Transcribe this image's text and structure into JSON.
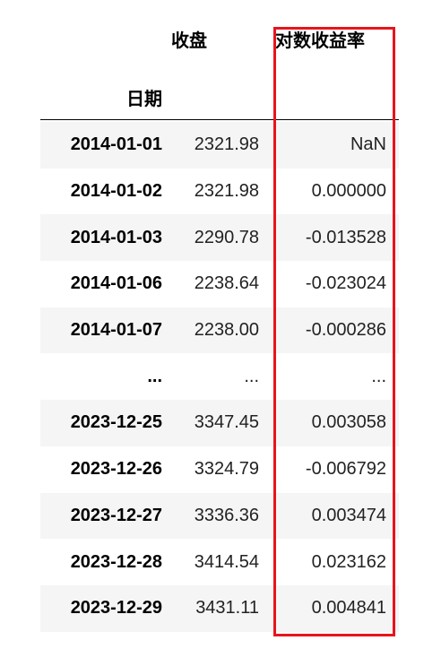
{
  "columns": {
    "close": "收盘",
    "log_return": "对数收益率",
    "index_name": "日期"
  },
  "rows": [
    {
      "date": "2014-01-01",
      "close": "2321.98",
      "log_return": "NaN"
    },
    {
      "date": "2014-01-02",
      "close": "2321.98",
      "log_return": "0.000000"
    },
    {
      "date": "2014-01-03",
      "close": "2290.78",
      "log_return": "-0.013528"
    },
    {
      "date": "2014-01-06",
      "close": "2238.64",
      "log_return": "-0.023024"
    },
    {
      "date": "2014-01-07",
      "close": "2238.00",
      "log_return": "-0.000286"
    },
    {
      "date": "...",
      "close": "...",
      "log_return": "..."
    },
    {
      "date": "2023-12-25",
      "close": "3347.45",
      "log_return": "0.003058"
    },
    {
      "date": "2023-12-26",
      "close": "3324.79",
      "log_return": "-0.006792"
    },
    {
      "date": "2023-12-27",
      "close": "3336.36",
      "log_return": "0.003474"
    },
    {
      "date": "2023-12-28",
      "close": "3414.54",
      "log_return": "0.023162"
    },
    {
      "date": "2023-12-29",
      "close": "3431.11",
      "log_return": "0.004841"
    }
  ],
  "highlight_color": "#e8141c"
}
